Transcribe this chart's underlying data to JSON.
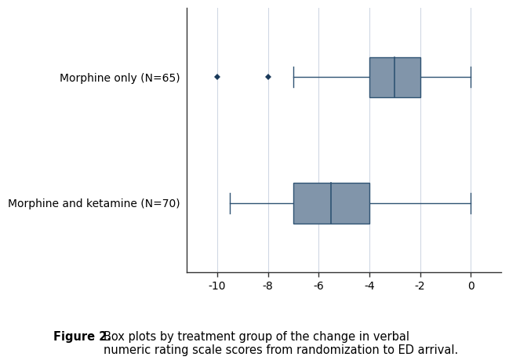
{
  "groups": [
    "Morphine only (N=65)",
    "Morphine and ketamine (N=70)"
  ],
  "morphine_only": {
    "whisker_low": -7.0,
    "q1": -4.0,
    "median": -3.0,
    "q3": -2.0,
    "whisker_high": 0.0,
    "outliers": [
      -10.0,
      -8.0
    ]
  },
  "morphine_ketamine": {
    "whisker_low": -9.5,
    "q1": -7.0,
    "median": -5.5,
    "q3": -4.0,
    "whisker_high": 0.0,
    "outliers": []
  },
  "xlim": [
    -11.2,
    1.2
  ],
  "xticks": [
    -10,
    -8,
    -6,
    -4,
    -2,
    0
  ],
  "box_color": "#8195aa",
  "box_edge_color": "#2f5373",
  "whisker_color": "#2f5373",
  "flier_color": "#1a3a5a",
  "background_color": "#ffffff",
  "grid_color": "#d0d8e4",
  "caption_bold": "Figure 2.",
  "caption_normal": " Box plots by treatment group of the change in verbal numeric rating scale scores from randomization to ED arrival.",
  "caption_fontsize": 10.5,
  "label_fontsize": 10.0,
  "tick_fontsize": 10.0
}
